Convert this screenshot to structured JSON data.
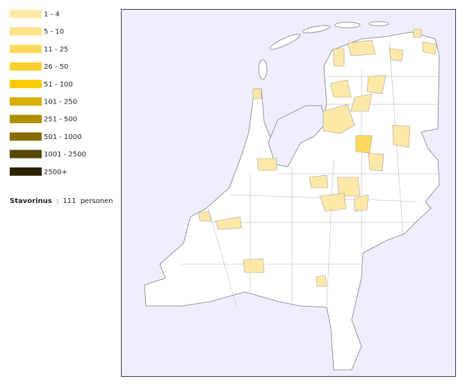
{
  "legend": [
    {
      "label": "1 - 4",
      "color": "#fee8a8"
    },
    {
      "label": "5 - 10",
      "color": "#fee38a"
    },
    {
      "label": "11 - 25",
      "color": "#fdda5c"
    },
    {
      "label": "26 - 50",
      "color": "#fbd132"
    },
    {
      "label": "51 - 100",
      "color": "#f8ca00"
    },
    {
      "label": "101 - 250",
      "color": "#d9b000"
    },
    {
      "label": "251 - 500",
      "color": "#b08f00"
    },
    {
      "label": "501 - 1000",
      "color": "#876d00"
    },
    {
      "label": "1001 - 2500",
      "color": "#574600"
    },
    {
      "label": "2500+",
      "color": "#2b2200"
    }
  ],
  "summary": {
    "name": "Stavorinus",
    "separator": ":",
    "count": 111,
    "unit": "personen"
  }
}
